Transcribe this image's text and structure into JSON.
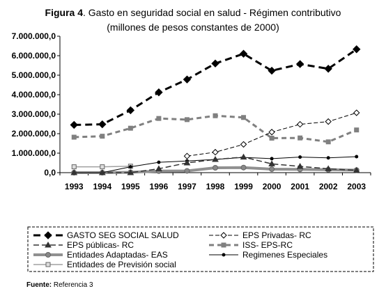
{
  "chart_data": {
    "type": "line",
    "title_bold": "Figura 4",
    "title_rest": ". Gasto en seguridad social en salud - Régimen contributivo",
    "subtitle": "(millones de pesos constantes de 2000)",
    "source_label": "Fuente:",
    "source_text": " Referencia 3",
    "x": [
      "1993",
      "1994",
      "1995",
      "1996",
      "1997",
      "1998",
      "1999",
      "2000",
      "2001",
      "2002",
      "2003"
    ],
    "ylim": [
      0,
      7000000
    ],
    "yticks": [
      0,
      1000000,
      2000000,
      3000000,
      4000000,
      5000000,
      6000000,
      7000000
    ],
    "ytick_labels": [
      "0,0",
      "1.000.000,0",
      "2.000.000,0",
      "3.000.000,0",
      "4.000.000,0",
      "5.000.000,0",
      "6.000.000,0",
      "7.000.000,0"
    ],
    "grid": false,
    "legend_position": "bottom",
    "series": [
      {
        "name": "GASTO SEG SOCIAL SALUD",
        "values": [
          2450000,
          2480000,
          3200000,
          4120000,
          4780000,
          5600000,
          6100000,
          5230000,
          5570000,
          5330000,
          6330000
        ],
        "color": "#000000",
        "marker": "diamond-filled"
      },
      {
        "name": "EPS Privadas- RC",
        "values": [
          null,
          null,
          null,
          null,
          850000,
          1050000,
          1450000,
          2080000,
          2480000,
          2620000,
          3070000
        ],
        "color": "#000000",
        "marker": "diamond-open"
      },
      {
        "name": "EPS públicas- RC",
        "values": [
          0,
          0,
          0,
          200000,
          500000,
          680000,
          800000,
          450000,
          320000,
          200000,
          120000
        ],
        "color": "#333333",
        "marker": "triangle"
      },
      {
        "name": "ISS- EPS-RC",
        "values": [
          1820000,
          1870000,
          2280000,
          2780000,
          2720000,
          2920000,
          2830000,
          1770000,
          1780000,
          1580000,
          2190000
        ],
        "color": "#808080",
        "marker": "square"
      },
      {
        "name": "Entidades Adaptadas- EAS",
        "values": [
          0,
          0,
          20000,
          80000,
          90000,
          250000,
          260000,
          180000,
          170000,
          150000,
          130000
        ],
        "color": "#909090",
        "marker": "circle"
      },
      {
        "name": "Regimenes Especiales",
        "values": [
          0,
          0,
          300000,
          530000,
          600000,
          680000,
          780000,
          720000,
          800000,
          760000,
          820000
        ],
        "color": "#000000",
        "marker": "dot"
      },
      {
        "name": "Entidades de Previsión social",
        "values": [
          300000,
          300000,
          330000,
          null,
          null,
          null,
          null,
          null,
          null,
          null,
          null
        ],
        "color": "#a0a0a0",
        "marker": "square-open"
      }
    ]
  }
}
